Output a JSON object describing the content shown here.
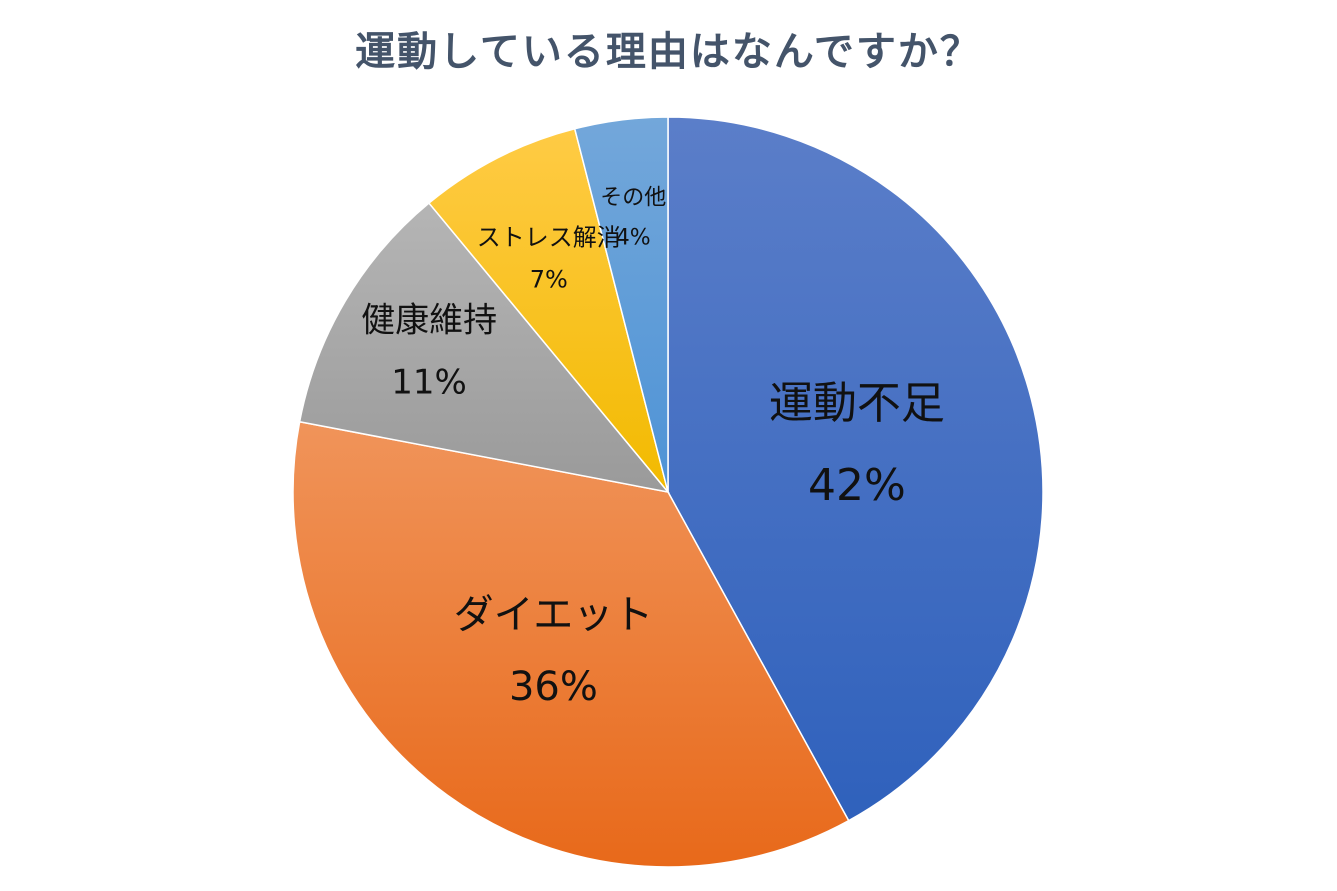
{
  "chart_data": {
    "type": "pie",
    "title": "運動している理由はなんですか？",
    "start_angle_deg": 0,
    "direction": "clockwise",
    "legend": "none",
    "slices": [
      {
        "name": "運動不足",
        "value": 42,
        "label": "42%",
        "color_top": "#5b7ec9",
        "color_bottom": "#2f61bc"
      },
      {
        "name": "ダイエット",
        "value": 36,
        "label": "36%",
        "color_top": "#f0945a",
        "color_bottom": "#e8691a"
      },
      {
        "name": "健康維持",
        "value": 11,
        "label": "11%",
        "color_top": "#b5b5b5",
        "color_bottom": "#9a9a9a"
      },
      {
        "name": "ストレス解消",
        "value": 7,
        "label": "7%",
        "color_top": "#ffcb45",
        "color_bottom": "#f2ba00"
      },
      {
        "name": "その他",
        "value": 4,
        "label": "4%",
        "color_top": "#73a7da",
        "color_bottom": "#4e93d6"
      }
    ]
  }
}
